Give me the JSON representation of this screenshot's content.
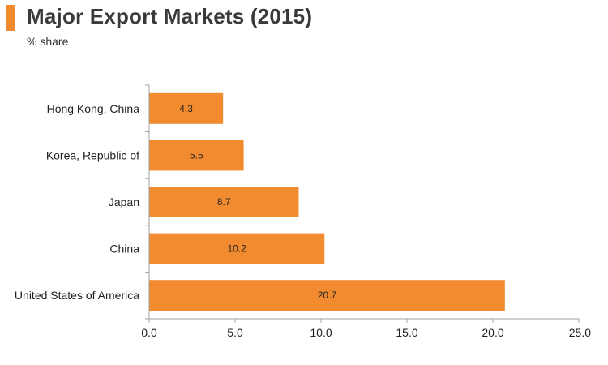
{
  "header": {
    "title": "Major Export Markets (2015)",
    "subtitle": "% share"
  },
  "colors": {
    "accent": "#f28b30",
    "bar": "#f28b30",
    "axis": "#a0a0a0",
    "text": "#222222"
  },
  "chart_data": {
    "type": "bar",
    "orientation": "horizontal",
    "title": "Major Export Markets (2015)",
    "subtitle": "% share",
    "categories": [
      "Hong Kong, China",
      "Korea, Republic of",
      "Japan",
      "China",
      "United States of America"
    ],
    "values": [
      4.3,
      5.5,
      8.7,
      10.2,
      20.7
    ],
    "data_labels": [
      "4.3",
      "5.5",
      "8.7",
      "10.2",
      "20.7"
    ],
    "xlim": [
      0,
      25
    ],
    "xticks": [
      "0.0",
      "5.0",
      "10.0",
      "15.0",
      "20.0",
      "25.0"
    ],
    "xlabel": "",
    "ylabel": "",
    "grid": false,
    "legend": "none"
  }
}
